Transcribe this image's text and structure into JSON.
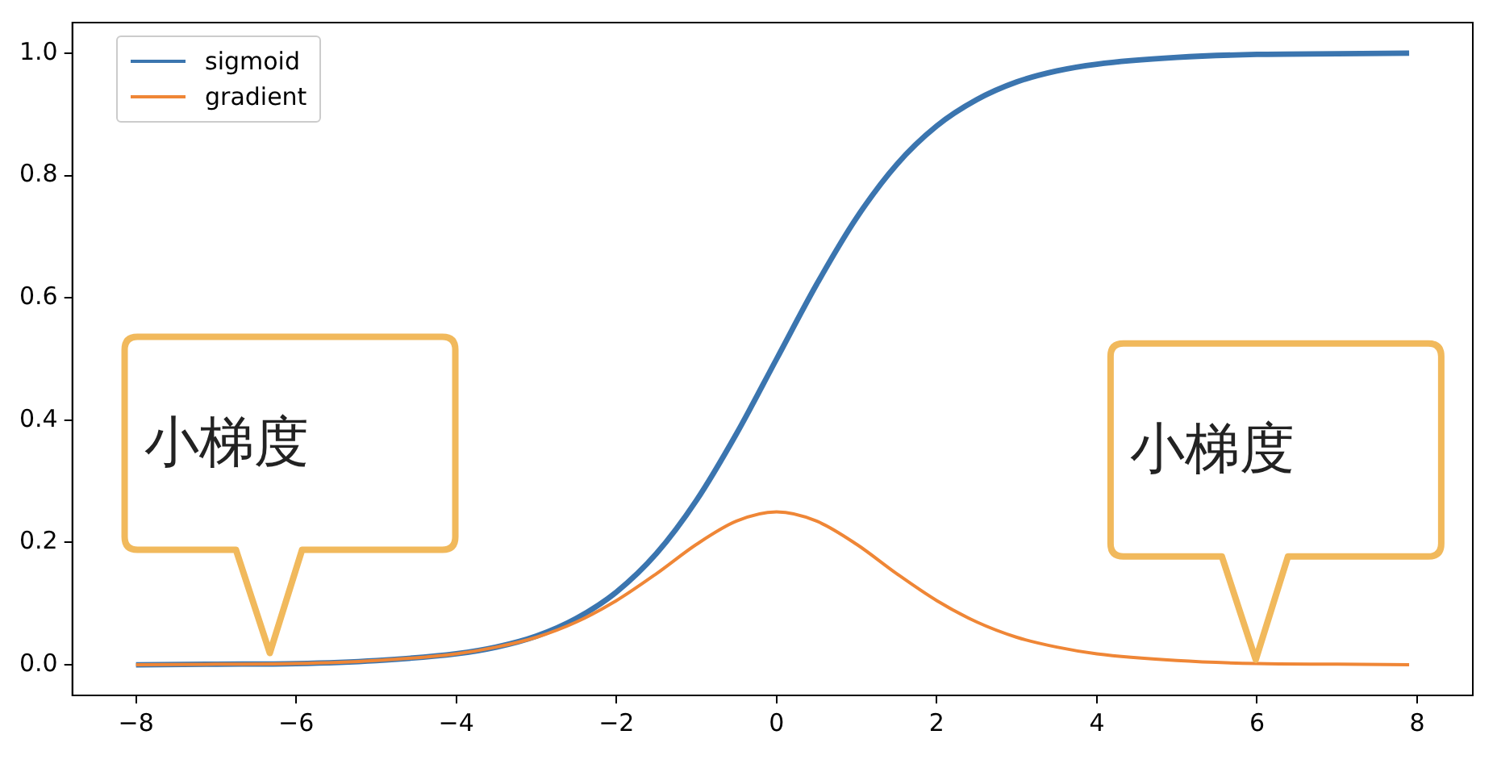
{
  "chart_data": {
    "type": "line",
    "x": [
      -8,
      -7,
      -6,
      -5,
      -4,
      -3.5,
      -3,
      -2.5,
      -2,
      -1.5,
      -1,
      -0.5,
      0,
      0.5,
      1,
      1.5,
      2,
      2.5,
      3,
      3.5,
      4,
      5,
      6,
      7,
      7.9
    ],
    "series": [
      {
        "name": "sigmoid",
        "color": "#3b75af",
        "values": [
          0.0,
          0.001,
          0.002,
          0.007,
          0.018,
          0.029,
          0.047,
          0.076,
          0.119,
          0.182,
          0.269,
          0.378,
          0.5,
          0.622,
          0.731,
          0.818,
          0.881,
          0.924,
          0.953,
          0.971,
          0.982,
          0.993,
          0.998,
          0.999,
          1.0
        ]
      },
      {
        "name": "gradient",
        "color": "#ef8636",
        "values": [
          0.0,
          0.001,
          0.002,
          0.007,
          0.018,
          0.029,
          0.045,
          0.07,
          0.105,
          0.149,
          0.197,
          0.235,
          0.25,
          0.235,
          0.197,
          0.149,
          0.105,
          0.07,
          0.045,
          0.029,
          0.018,
          0.007,
          0.002,
          0.001,
          0.0
        ]
      }
    ],
    "xlim": [
      -8.795,
      8.695
    ],
    "xticks": [
      {
        "value": -8,
        "label": "−8"
      },
      {
        "value": -6,
        "label": "−6"
      },
      {
        "value": -4,
        "label": "−4"
      },
      {
        "value": -2,
        "label": "−2"
      },
      0,
      2,
      4,
      6,
      8
    ],
    "ylim": [
      -0.05,
      1.05
    ],
    "yticks": [
      {
        "value": 0,
        "label": "0.0"
      },
      {
        "value": 0.2,
        "label": "0.2"
      },
      {
        "value": 0.4,
        "label": "0.4"
      },
      {
        "value": 0.6,
        "label": "0.6"
      },
      {
        "value": 0.8,
        "label": "0.8"
      },
      {
        "value": 1,
        "label": "1.0"
      }
    ],
    "annotations": [
      "小梯度",
      "小梯度"
    ],
    "legend": "top left",
    "grid": false,
    "marker": "none",
    "line_style": "solid"
  }
}
